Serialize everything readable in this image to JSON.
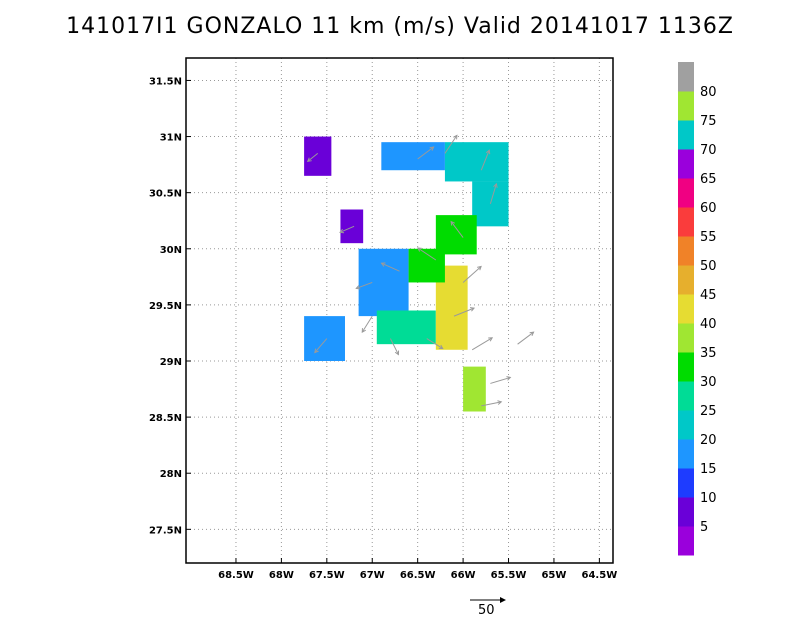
{
  "title": "141017I1 GONZALO 11 km (m/s) Valid 20141017 1136Z",
  "chart_data": {
    "type": "heatmap",
    "x_ticks": [
      {
        "value": -68.5,
        "label": "68.5W"
      },
      {
        "value": -68,
        "label": "68W"
      },
      {
        "value": -67.5,
        "label": "67.5W"
      },
      {
        "value": -67,
        "label": "67W"
      },
      {
        "value": -66.5,
        "label": "66.5W"
      },
      {
        "value": -66,
        "label": "66W"
      },
      {
        "value": -65.5,
        "label": "65.5W"
      },
      {
        "value": -65,
        "label": "65W"
      },
      {
        "value": -64.5,
        "label": "64.5W"
      }
    ],
    "y_ticks": [
      {
        "value": 27.5,
        "label": "27.5N"
      },
      {
        "value": 28,
        "label": "28N"
      },
      {
        "value": 28.5,
        "label": "28.5N"
      },
      {
        "value": 29,
        "label": "29N"
      },
      {
        "value": 29.5,
        "label": "29.5N"
      },
      {
        "value": 30,
        "label": "30N"
      },
      {
        "value": 30.5,
        "label": "30.5N"
      },
      {
        "value": 31,
        "label": "31N"
      },
      {
        "value": 31.5,
        "label": "31.5N"
      }
    ],
    "xlim": [
      -69.05,
      -64.35
    ],
    "ylim": [
      27.2,
      31.7
    ],
    "grid": true,
    "colorbar": {
      "labels": [
        "5",
        "10",
        "15",
        "20",
        "25",
        "30",
        "35",
        "40",
        "45",
        "50",
        "55",
        "60",
        "65",
        "70",
        "75",
        "80"
      ],
      "colors": [
        "#9a00dc",
        "#6a00d8",
        "#1e3cff",
        "#1e96ff",
        "#00c8c8",
        "#00dc96",
        "#00dc00",
        "#a0e632",
        "#e6dc32",
        "#e6af2d",
        "#f08228",
        "#fa3c3c",
        "#f00082",
        "#9a00dc",
        "#00c8c8",
        "#a0e632",
        "#a0a0a0"
      ]
    },
    "wind_regions": [
      {
        "lon": [
          -67.75,
          -67.45
        ],
        "lat": [
          30.65,
          31.0
        ],
        "speed": 5
      },
      {
        "lon": [
          -67.35,
          -67.1
        ],
        "lat": [
          30.05,
          30.35
        ],
        "speed": 8
      },
      {
        "lon": [
          -66.9,
          -66.2
        ],
        "lat": [
          30.7,
          30.95
        ],
        "speed": 15
      },
      {
        "lon": [
          -66.2,
          -65.5
        ],
        "lat": [
          30.6,
          30.95
        ],
        "speed": 22
      },
      {
        "lon": [
          -65.9,
          -65.5
        ],
        "lat": [
          30.2,
          30.6
        ],
        "speed": 22
      },
      {
        "lon": [
          -66.3,
          -65.85
        ],
        "lat": [
          29.95,
          30.3
        ],
        "speed": 30
      },
      {
        "lon": [
          -67.15,
          -66.6
        ],
        "lat": [
          29.4,
          30.0
        ],
        "speed": 15
      },
      {
        "lon": [
          -66.95,
          -66.3
        ],
        "lat": [
          29.15,
          29.45
        ],
        "speed": 25
      },
      {
        "lon": [
          -66.3,
          -65.95
        ],
        "lat": [
          29.1,
          29.85
        ],
        "speed": 40
      },
      {
        "lon": [
          -66.6,
          -66.2
        ],
        "lat": [
          29.7,
          30.0
        ],
        "speed": 32
      },
      {
        "lon": [
          -67.75,
          -67.3
        ],
        "lat": [
          29.0,
          29.4
        ],
        "speed": 18
      },
      {
        "lon": [
          -66.0,
          -65.75
        ],
        "lat": [
          28.55,
          28.95
        ],
        "speed": 35
      }
    ],
    "wind_vectors": [
      {
        "lon": -66.5,
        "lat": 30.8,
        "u": 8,
        "v": 6
      },
      {
        "lon": -66.2,
        "lat": 30.85,
        "u": 6,
        "v": 9
      },
      {
        "lon": -65.8,
        "lat": 30.7,
        "u": 4,
        "v": 10
      },
      {
        "lon": -65.7,
        "lat": 30.4,
        "u": 3,
        "v": 10
      },
      {
        "lon": -66.0,
        "lat": 30.1,
        "u": -6,
        "v": 8
      },
      {
        "lon": -66.3,
        "lat": 29.9,
        "u": -9,
        "v": 6
      },
      {
        "lon": -66.7,
        "lat": 29.8,
        "u": -9,
        "v": 4
      },
      {
        "lon": -67.0,
        "lat": 29.7,
        "u": -8,
        "v": -3
      },
      {
        "lon": -67.0,
        "lat": 29.4,
        "u": -5,
        "v": -8
      },
      {
        "lon": -66.8,
        "lat": 29.2,
        "u": 4,
        "v": -8
      },
      {
        "lon": -66.4,
        "lat": 29.2,
        "u": 8,
        "v": -5
      },
      {
        "lon": -66.1,
        "lat": 29.4,
        "u": 10,
        "v": 4
      },
      {
        "lon": -66.0,
        "lat": 29.7,
        "u": 9,
        "v": 8
      },
      {
        "lon": -65.9,
        "lat": 29.1,
        "u": 10,
        "v": 6
      },
      {
        "lon": -65.7,
        "lat": 28.8,
        "u": 10,
        "v": 3
      },
      {
        "lon": -65.8,
        "lat": 28.6,
        "u": 10,
        "v": 2
      },
      {
        "lon": -67.5,
        "lat": 29.2,
        "u": -6,
        "v": -7
      },
      {
        "lon": -67.6,
        "lat": 30.85,
        "u": -5,
        "v": -4
      },
      {
        "lon": -67.2,
        "lat": 30.2,
        "u": -7,
        "v": -3
      },
      {
        "lon": -65.4,
        "lat": 29.15,
        "u": 8,
        "v": 6
      }
    ],
    "reference_vector": {
      "label": "50",
      "speed": 50
    }
  }
}
